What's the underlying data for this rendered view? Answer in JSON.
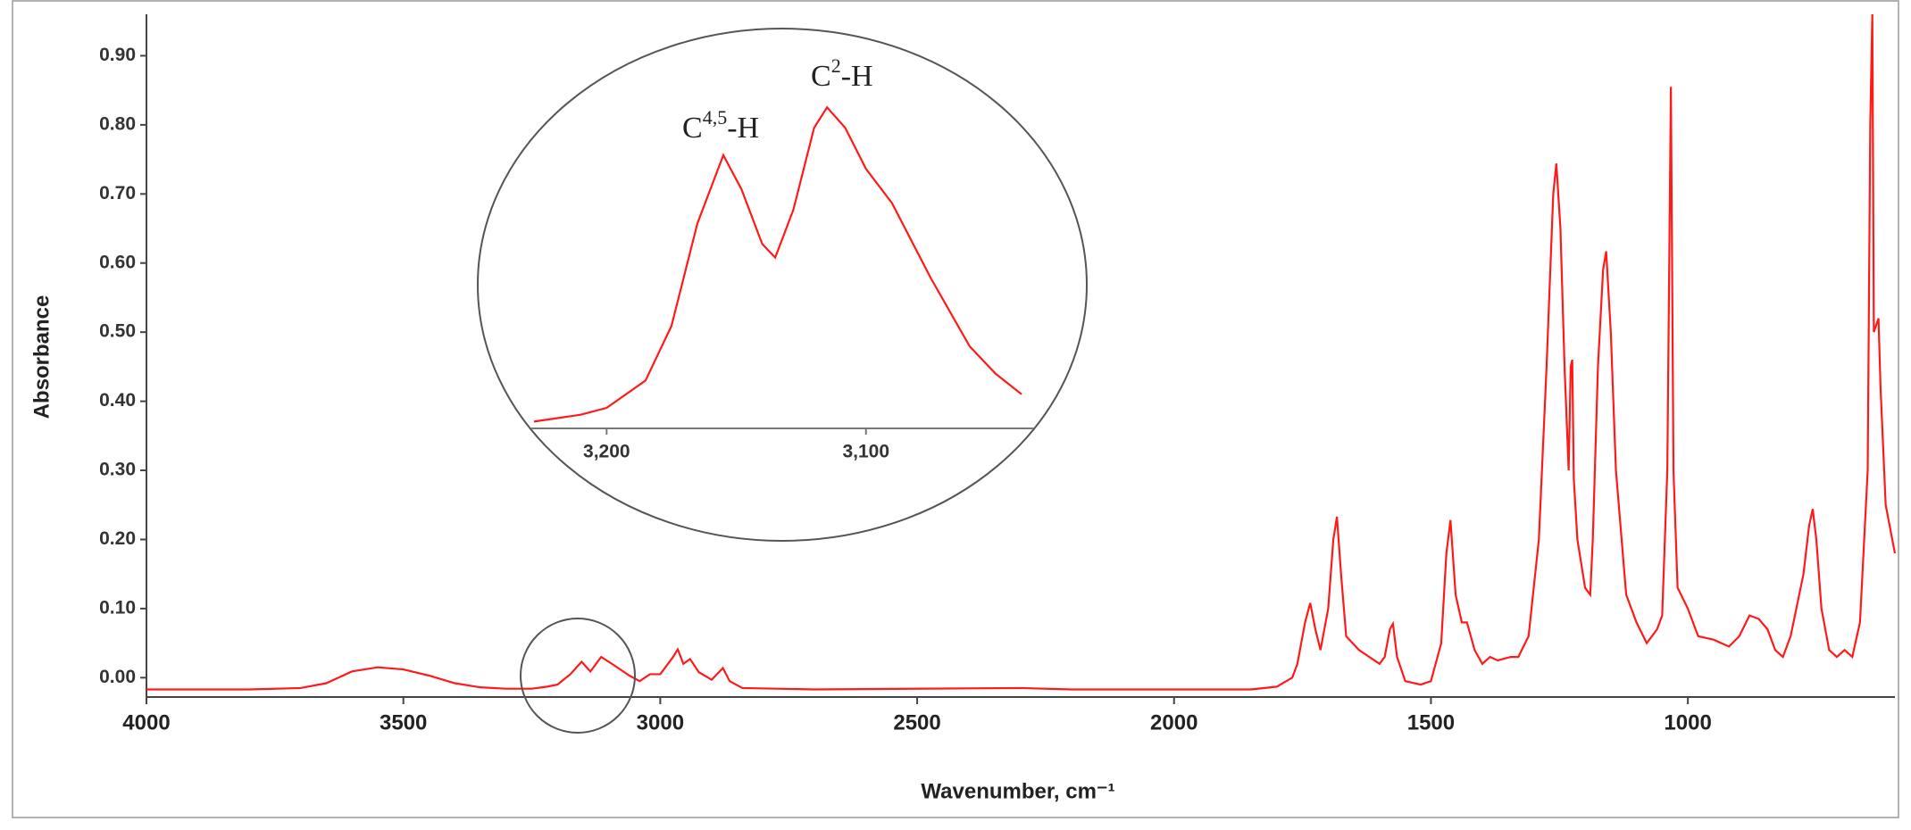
{
  "chart_data": [
    {
      "type": "line",
      "x_label": "Wavenumber, cm⁻¹",
      "y_label": "Absorbance",
      "x": [
        4000,
        3800,
        3700,
        3650,
        3600,
        3550,
        3500,
        3450,
        3400,
        3350,
        3300,
        3250,
        3220,
        3200,
        3175,
        3153,
        3136,
        3115,
        3090,
        3060,
        3040,
        3020,
        3000,
        2975,
        2966,
        2955,
        2942,
        2925,
        2900,
        2878,
        2865,
        2840,
        2700,
        2300,
        2200,
        2000,
        1850,
        1800,
        1770,
        1760,
        1745,
        1735,
        1725,
        1715,
        1700,
        1690,
        1683,
        1675,
        1665,
        1640,
        1600,
        1590,
        1580,
        1574,
        1566,
        1550,
        1520,
        1500,
        1480,
        1470,
        1462,
        1452,
        1440,
        1430,
        1415,
        1400,
        1385,
        1370,
        1345,
        1330,
        1310,
        1290,
        1275,
        1262,
        1256,
        1248,
        1240,
        1232,
        1228,
        1225,
        1222,
        1215,
        1200,
        1190,
        1185,
        1175,
        1165,
        1159,
        1150,
        1140,
        1120,
        1100,
        1080,
        1060,
        1050,
        1040,
        1033,
        1028,
        1020,
        1000,
        980,
        950,
        920,
        900,
        880,
        862,
        845,
        830,
        815,
        800,
        775,
        764,
        757,
        750,
        740,
        725,
        710,
        695,
        680,
        665,
        650,
        645,
        641,
        638,
        629,
        625,
        615,
        597
      ],
      "series": [
        {
          "color": "#ff1a1a",
          "values": [
            -0.017,
            -0.017,
            -0.015,
            -0.008,
            0.009,
            0.015,
            0.012,
            0.003,
            -0.008,
            -0.014,
            -0.016,
            -0.016,
            -0.013,
            -0.01,
            0.005,
            0.023,
            0.009,
            0.03,
            0.018,
            0.003,
            -0.005,
            0.005,
            0.005,
            0.03,
            0.041,
            0.02,
            0.027,
            0.008,
            -0.003,
            0.014,
            -0.005,
            -0.015,
            -0.017,
            -0.015,
            -0.017,
            -0.017,
            -0.017,
            -0.013,
            0.0,
            0.02,
            0.08,
            0.108,
            0.07,
            0.04,
            0.1,
            0.2,
            0.233,
            0.15,
            0.06,
            0.04,
            0.02,
            0.03,
            0.07,
            0.078,
            0.03,
            -0.005,
            -0.01,
            -0.005,
            0.05,
            0.18,
            0.228,
            0.12,
            0.08,
            0.08,
            0.04,
            0.02,
            0.03,
            0.025,
            0.03,
            0.03,
            0.06,
            0.2,
            0.45,
            0.7,
            0.744,
            0.65,
            0.45,
            0.3,
            0.45,
            0.46,
            0.288,
            0.2,
            0.13,
            0.12,
            0.2,
            0.45,
            0.59,
            0.617,
            0.5,
            0.3,
            0.12,
            0.08,
            0.05,
            0.07,
            0.09,
            0.3,
            0.855,
            0.3,
            0.13,
            0.1,
            0.06,
            0.055,
            0.045,
            0.06,
            0.09,
            0.085,
            0.07,
            0.04,
            0.03,
            0.06,
            0.15,
            0.22,
            0.244,
            0.2,
            0.1,
            0.04,
            0.03,
            0.04,
            0.03,
            0.08,
            0.3,
            0.8,
            0.96,
            0.5,
            0.52,
            0.42,
            0.25,
            0.18
          ]
        }
      ],
      "xlim": [
        4000,
        597
      ],
      "ylim": [
        -0.028,
        0.96
      ],
      "xticks": [
        4000,
        3500,
        3000,
        2500,
        2000,
        1500,
        1000
      ],
      "yticks": [
        {
          "value": 0,
          "label": "0.00"
        },
        {
          "value": 0.1,
          "label": "0.10"
        },
        {
          "value": 0.2,
          "label": "0.20"
        },
        {
          "value": 0.3,
          "label": "0.30"
        },
        {
          "value": 0.4,
          "label": "0.40"
        },
        {
          "value": 0.5,
          "label": "0.50"
        },
        {
          "value": 0.6,
          "label": "0.60"
        },
        {
          "value": 0.7,
          "label": "0.70"
        },
        {
          "value": 0.8,
          "label": "0.80"
        },
        {
          "value": 0.9,
          "label": "0.90"
        }
      ]
    },
    {
      "type": "line",
      "x": [
        3228,
        3210,
        3200,
        3185,
        3175,
        3165,
        3155,
        3148,
        3140,
        3135,
        3128,
        3120,
        3115,
        3108,
        3100,
        3090,
        3075,
        3060,
        3050,
        3040
      ],
      "series": [
        {
          "color": "#ff1a1a",
          "values": [
            0.001,
            0.002,
            0.003,
            0.007,
            0.015,
            0.03,
            0.04,
            0.035,
            0.027,
            0.025,
            0.032,
            0.044,
            0.047,
            0.044,
            0.038,
            0.033,
            0.022,
            0.012,
            0.008,
            0.005
          ]
        }
      ],
      "xlim": [
        3228,
        3040
      ],
      "ylim": [
        0,
        0.052
      ],
      "xticks": [
        {
          "value": 3200,
          "label": "3,200"
        },
        {
          "value": 3100,
          "label": "3,100"
        }
      ],
      "annotations": [
        {
          "base": "C",
          "sup": "4,5",
          "rest": "-H"
        },
        {
          "base": "C",
          "sup": "2",
          "rest": "-H"
        }
      ]
    }
  ]
}
